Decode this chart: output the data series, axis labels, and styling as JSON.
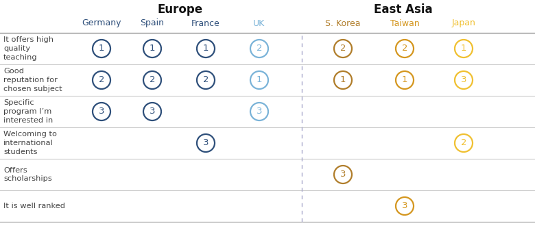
{
  "title_europe": "Europe",
  "title_east_asia": "East Asia",
  "columns": [
    "Germany",
    "Spain",
    "France",
    "UK",
    "S. Korea",
    "Taiwan",
    "Japan"
  ],
  "col_colors": [
    "#2e4f7a",
    "#2e4f7a",
    "#2e4f7a",
    "#7ab3d8",
    "#b07d2a",
    "#d4961e",
    "#f0c030"
  ],
  "rows": [
    "It offers high\nquality\nteaching",
    "Good\nreputation for\nchosen subject",
    "Specific\nprogram I’m\ninterested in",
    "Welcoming to\ninternational\nstudents",
    "Offers\nscholarships",
    "It is well ranked"
  ],
  "data": [
    [
      1,
      1,
      1,
      2,
      2,
      2,
      1
    ],
    [
      2,
      2,
      2,
      1,
      1,
      1,
      3
    ],
    [
      3,
      3,
      null,
      3,
      null,
      null,
      null
    ],
    [
      null,
      null,
      3,
      null,
      null,
      null,
      2
    ],
    [
      null,
      null,
      null,
      null,
      3,
      null,
      null
    ],
    [
      null,
      null,
      null,
      null,
      null,
      3,
      null
    ]
  ],
  "background_color": "#ffffff",
  "text_color": "#444444",
  "header_color": "#111111",
  "row_line_color": "#cccccc",
  "top_line_color": "#999999",
  "divider_color": "#aaaacc"
}
